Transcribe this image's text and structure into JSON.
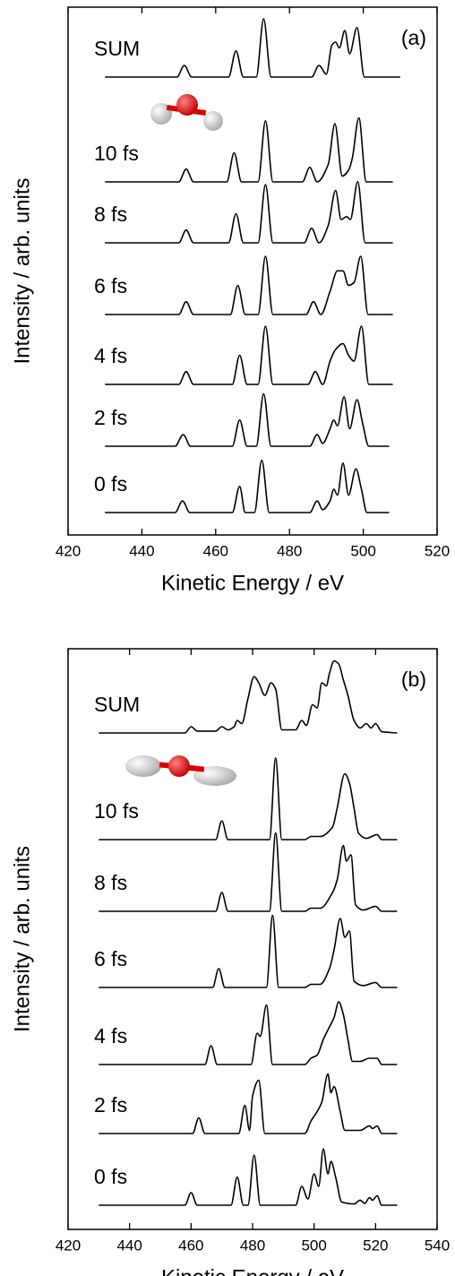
{
  "chart_data": [
    {
      "type": "line",
      "panel_label": "(a)",
      "xlabel": "Kinetic Energy / eV",
      "ylabel": "Intensity / arb. units",
      "xlim": [
        420,
        520
      ],
      "xticks": [
        420,
        440,
        460,
        480,
        500,
        520
      ],
      "series": [
        {
          "name": "SUM",
          "color": "#000000",
          "x": [
            430,
            449.5,
            451.5,
            453.5,
            463.5,
            465.5,
            467.5,
            471,
            473,
            475,
            486,
            488,
            490,
            491.5,
            492.5,
            493.5,
            495,
            496.3,
            498.3,
            500.3,
            510
          ],
          "values": [
            0,
            0,
            0.2,
            0,
            0,
            0.45,
            0,
            0,
            1.0,
            0,
            0,
            0.2,
            0.05,
            0.55,
            0.6,
            0.5,
            0.8,
            0.4,
            0.85,
            0,
            0
          ]
        },
        {
          "name": "10 fs",
          "color": "#000000",
          "x": [
            430,
            450,
            452,
            454,
            463,
            465,
            467,
            471.5,
            473.5,
            475.5,
            483.5,
            485.5,
            487.5,
            490.5,
            492.3,
            494.3,
            496,
            497,
            498.8,
            500.8,
            508
          ],
          "values": [
            0,
            0,
            0.22,
            0,
            0,
            0.5,
            0,
            0,
            1.05,
            0,
            0,
            0.25,
            0,
            0.3,
            1.0,
            0.1,
            0.2,
            0.4,
            1.1,
            0,
            0
          ]
        },
        {
          "name": "8 fs",
          "color": "#000000",
          "x": [
            430,
            450,
            452,
            454,
            463.5,
            465.5,
            467.5,
            471.5,
            473.5,
            475.5,
            484,
            486,
            488,
            490.5,
            492.5,
            494,
            495.5,
            496.5,
            498.5,
            500.5,
            508
          ],
          "values": [
            0,
            0,
            0.22,
            0,
            0,
            0.5,
            0,
            0,
            1.0,
            0,
            0,
            0.25,
            0,
            0.3,
            0.9,
            0.4,
            0.45,
            0.4,
            1.05,
            0,
            0
          ]
        },
        {
          "name": "6 fs",
          "color": "#000000",
          "x": [
            430,
            450,
            452,
            454,
            464,
            466,
            468,
            471.5,
            473.5,
            475.5,
            484.5,
            486.5,
            488.5,
            491,
            493,
            494.5,
            496,
            497.5,
            499.3,
            501.3,
            508
          ],
          "values": [
            0,
            0,
            0.22,
            0,
            0,
            0.5,
            0,
            0,
            1.0,
            0,
            0,
            0.22,
            0,
            0.4,
            0.75,
            0.75,
            0.5,
            0.55,
            1.0,
            0,
            0
          ]
        },
        {
          "name": "4 fs",
          "color": "#000000",
          "x": [
            430,
            450,
            452,
            454,
            464.5,
            466.5,
            468.5,
            471.5,
            473.5,
            475.5,
            485,
            487,
            489,
            491,
            492.5,
            494.5,
            496,
            497.5,
            499.5,
            501.5,
            508
          ],
          "values": [
            0,
            0,
            0.22,
            0,
            0,
            0.5,
            0,
            0,
            1.0,
            0,
            0,
            0.22,
            0,
            0.4,
            0.6,
            0.7,
            0.5,
            0.4,
            1.0,
            0,
            0
          ]
        },
        {
          "name": "2 fs",
          "color": "#000000",
          "x": [
            430,
            449,
            451.2,
            453.2,
            464.5,
            466.5,
            468.5,
            471,
            473,
            475,
            485.5,
            487.5,
            489,
            491,
            492,
            493,
            494.8,
            496.3,
            498.3,
            499.8,
            501.5,
            507
          ],
          "values": [
            0,
            0,
            0.2,
            0,
            0,
            0.45,
            0,
            0,
            0.9,
            0,
            0,
            0.2,
            0.05,
            0.3,
            0.45,
            0.35,
            0.85,
            0.3,
            0.8,
            0.4,
            0,
            0
          ]
        },
        {
          "name": "0 fs",
          "color": "#000000",
          "x": [
            430,
            449,
            451,
            453,
            464.5,
            466.5,
            468,
            470.5,
            472.5,
            474.5,
            485.5,
            487.5,
            489,
            491,
            492,
            493,
            494.5,
            496,
            498,
            499.5,
            501,
            507
          ],
          "values": [
            0,
            0,
            0.2,
            0,
            0,
            0.45,
            0,
            0,
            0.9,
            0,
            0,
            0.2,
            0.05,
            0.2,
            0.4,
            0.3,
            0.85,
            0.3,
            0.75,
            0.4,
            0,
            0
          ]
        }
      ]
    },
    {
      "type": "line",
      "panel_label": "(b)",
      "xlabel": "Kinetic Energy / eV",
      "ylabel": "Intensity / arb. units",
      "xlim": [
        420,
        540
      ],
      "xticks": [
        420,
        440,
        460,
        480,
        500,
        520,
        540
      ],
      "series": [
        {
          "name": "SUM",
          "color": "#000000",
          "x": [
            430,
            458,
            460,
            462,
            468,
            470,
            472,
            474,
            475,
            476.5,
            478.5,
            480.5,
            482,
            484,
            486,
            487.5,
            489.5,
            494,
            496,
            497.5,
            499.5,
            501,
            502.5,
            504,
            505,
            506.5,
            508,
            509.5,
            511,
            513,
            515,
            517,
            518.5,
            520,
            522,
            527
          ],
          "values": [
            0,
            0,
            0.1,
            0.03,
            0.03,
            0.1,
            0.05,
            0.1,
            0.2,
            0.15,
            0.55,
            0.9,
            0.8,
            0.6,
            0.8,
            0.7,
            0.05,
            0.05,
            0.2,
            0.12,
            0.45,
            0.4,
            0.8,
            0.75,
            0.95,
            1.15,
            1.1,
            0.85,
            0.6,
            0.2,
            0.08,
            0.15,
            0.08,
            0.15,
            0.02,
            0
          ]
        },
        {
          "name": "10 fs",
          "color": "#000000",
          "x": [
            430,
            468,
            470,
            472,
            485.5,
            487.5,
            489.5,
            497,
            499,
            502,
            506,
            507.5,
            510,
            511.5,
            513,
            514.5,
            517,
            520.5,
            522,
            527
          ],
          "values": [
            0,
            0,
            0.3,
            0,
            0,
            1.3,
            0,
            0,
            0.05,
            0.05,
            0.2,
            0.5,
            1.05,
            0.9,
            0.5,
            0.1,
            0.02,
            0.08,
            0,
            0
          ]
        },
        {
          "name": "8 fs",
          "color": "#000000",
          "x": [
            430,
            468,
            470,
            472,
            485.5,
            487.5,
            489.5,
            497,
            499,
            502,
            506,
            507.5,
            509.5,
            510.5,
            512,
            513.5,
            516,
            520,
            522,
            527
          ],
          "values": [
            0,
            0,
            0.3,
            0,
            0,
            1.25,
            0,
            0,
            0.05,
            0.05,
            0.3,
            0.5,
            1.05,
            0.8,
            0.9,
            0.1,
            0.02,
            0.08,
            0,
            0
          ]
        },
        {
          "name": "6 fs",
          "color": "#000000",
          "x": [
            430,
            467,
            469,
            471,
            484.5,
            486.5,
            488.5,
            497,
            499,
            502,
            505,
            506.5,
            508.5,
            510,
            511.5,
            513,
            516,
            520,
            522,
            527
          ],
          "values": [
            0,
            0,
            0.3,
            0,
            0,
            1.15,
            0,
            0,
            0.05,
            0.05,
            0.3,
            0.6,
            1.1,
            0.8,
            0.9,
            0.1,
            0.03,
            0.08,
            0,
            0
          ]
        },
        {
          "name": "4 fs",
          "color": "#000000",
          "x": [
            430,
            464.5,
            466.5,
            468.5,
            479.5,
            481.5,
            482.5,
            484.5,
            486.5,
            497,
            499,
            501,
            503,
            505,
            506.5,
            508,
            509.5,
            511,
            512.5,
            515,
            518,
            520.5,
            522,
            527
          ],
          "values": [
            0,
            0,
            0.3,
            0,
            0,
            0.5,
            0.45,
            0.95,
            0,
            0,
            0.1,
            0.15,
            0.4,
            0.6,
            0.75,
            1.0,
            0.8,
            0.4,
            0.05,
            0.05,
            0.1,
            0.1,
            0,
            0
          ]
        },
        {
          "name": "2 fs",
          "color": "#000000",
          "x": [
            430,
            460.5,
            462.5,
            464.5,
            475.5,
            477.5,
            479,
            480,
            482,
            484,
            497,
            499,
            501,
            502.5,
            504.5,
            505.5,
            506.5,
            508.5,
            510,
            515,
            518,
            519,
            520.5,
            522,
            527
          ],
          "values": [
            0,
            0,
            0.25,
            0,
            0,
            0.45,
            0.05,
            0.6,
            0.85,
            0,
            0,
            0.2,
            0.35,
            0.5,
            0.95,
            0.65,
            0.75,
            0.35,
            0.05,
            0.05,
            0.12,
            0.08,
            0.12,
            0,
            0
          ]
        },
        {
          "name": "0 fs",
          "color": "#000000",
          "x": [
            430,
            458,
            460,
            462,
            473,
            475,
            477,
            478.5,
            480.5,
            482.5,
            494,
            496,
            498,
            500,
            501.5,
            503,
            504.5,
            505.5,
            507,
            509,
            513,
            515,
            516.5,
            518,
            519,
            520.5,
            522,
            527
          ],
          "values": [
            0,
            0,
            0.2,
            0,
            0,
            0.45,
            0,
            0,
            0.8,
            0,
            0,
            0.3,
            0.1,
            0.5,
            0.3,
            0.9,
            0.5,
            0.7,
            0.45,
            0.05,
            0.02,
            0.08,
            0.03,
            0.12,
            0.08,
            0.15,
            0,
            0
          ]
        }
      ]
    }
  ]
}
